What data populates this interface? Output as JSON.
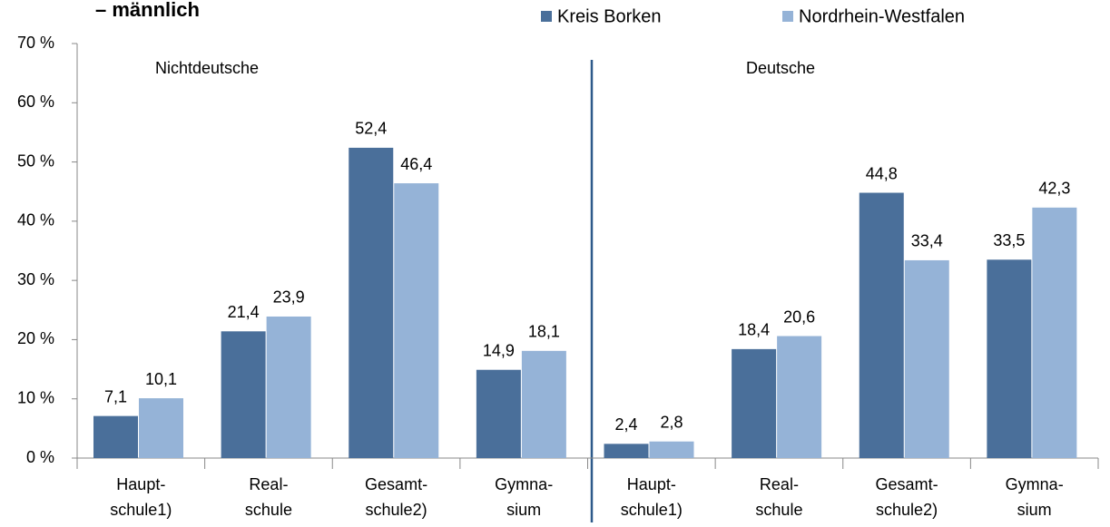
{
  "chart_data": {
    "type": "bar",
    "title": "– männlich",
    "categories": [
      [
        "Haupt-",
        "schule1)"
      ],
      [
        "Real-",
        "schule"
      ],
      [
        "Gesamt-",
        "schule2)"
      ],
      [
        "Gymna-",
        "sium"
      ],
      [
        "Haupt-",
        "schule1)"
      ],
      [
        "Real-",
        "schule"
      ],
      [
        "Gesamt-",
        "schule2)"
      ],
      [
        "Gymna-",
        "sium"
      ]
    ],
    "annotations": [
      "Nichtdeutsche",
      "Deutsche"
    ],
    "series": [
      {
        "name": "Kreis Borken",
        "color": "#4a6f9a",
        "values": [
          7.1,
          21.4,
          52.4,
          14.9,
          2.4,
          18.4,
          44.8,
          33.5
        ],
        "value_labels": [
          "7,1",
          "21,4",
          "52,4",
          "14,9",
          "2,4",
          "18,4",
          "44,8",
          "33,5"
        ]
      },
      {
        "name": "Nordrhein-Westfalen",
        "color": "#95b3d7",
        "values": [
          10.1,
          23.9,
          46.4,
          18.1,
          2.8,
          20.6,
          33.4,
          42.3
        ],
        "value_labels": [
          "10,1",
          "23,9",
          "46,4",
          "18,1",
          "2,8",
          "20,6",
          "33,4",
          "42,3"
        ]
      }
    ],
    "ylim": [
      0,
      70
    ],
    "yticks": [
      {
        "value": 0,
        "label": "0 %"
      },
      {
        "value": 10,
        "label": "10 %"
      },
      {
        "value": 20,
        "label": "20 %"
      },
      {
        "value": 30,
        "label": "30 %"
      },
      {
        "value": 40,
        "label": "40 %"
      },
      {
        "value": 50,
        "label": "50 %"
      },
      {
        "value": 60,
        "label": "60 %"
      },
      {
        "value": 70,
        "label": "70 %"
      }
    ],
    "legend": "top"
  }
}
